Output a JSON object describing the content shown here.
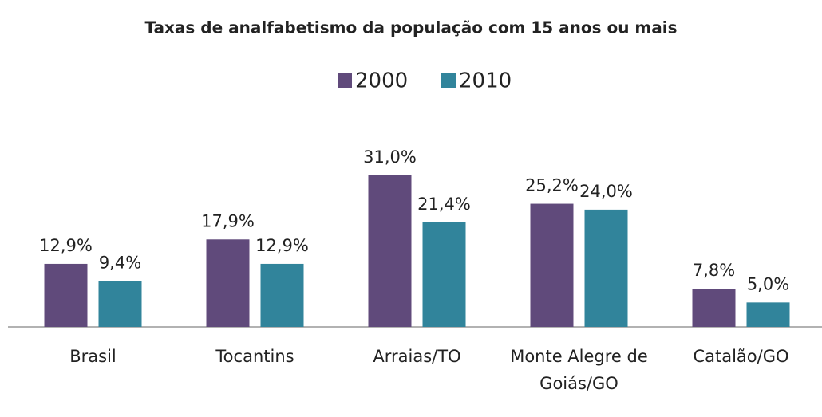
{
  "chart_data": {
    "type": "bar",
    "title": "Taxas de analfabetismo da população com 15 anos ou mais",
    "categories": [
      "Brasil",
      "Tocantins",
      "Arraias/TO",
      "Monte Alegre de Goiás/GO",
      "Catalão/GO"
    ],
    "series": [
      {
        "name": "2000",
        "color": "#604a7b",
        "values": [
          12.9,
          17.9,
          31.0,
          25.2,
          7.8
        ],
        "value_labels": [
          "12,9%",
          "17,9%",
          "31,0%",
          "25,2%",
          "7,8%"
        ]
      },
      {
        "name": "2010",
        "color": "#31849b",
        "values": [
          9.4,
          12.9,
          21.4,
          24.0,
          5.0
        ],
        "value_labels": [
          "9,4%",
          "12,9%",
          "21,4%",
          "24,0%",
          "5,0%"
        ]
      }
    ],
    "legend": "top"
  }
}
